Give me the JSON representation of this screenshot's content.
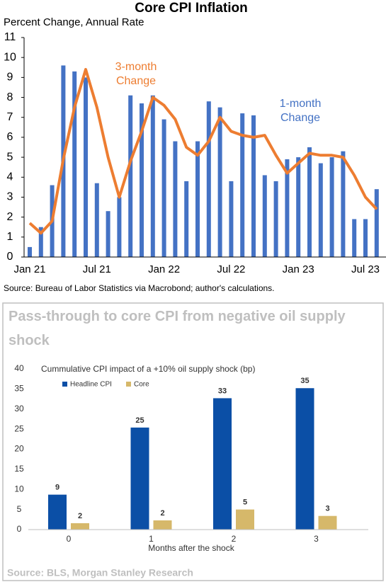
{
  "chart_data": [
    {
      "type": "bar",
      "title": "Core CPI Inflation",
      "subtitle": "Percent Change, Annual Rate",
      "source": "Source: Bureau of Labor Statistics via Macrobond; author's calculations.",
      "categories": [
        "Jan 21",
        null,
        null,
        null,
        null,
        null,
        "Jul 21",
        null,
        null,
        null,
        null,
        null,
        "Jan 22",
        null,
        null,
        null,
        null,
        null,
        "Jul 22",
        null,
        null,
        null,
        null,
        null,
        "Jan 23",
        null,
        null,
        null,
        null,
        null,
        "Jul 23",
        null
      ],
      "series": [
        {
          "name": "1-month Change",
          "type": "bar",
          "color": "#4472c4",
          "values": [
            0.5,
            1.5,
            3.6,
            9.6,
            9.3,
            9.0,
            3.7,
            2.3,
            3.0,
            8.1,
            7.7,
            8.1,
            6.9,
            5.8,
            3.8,
            5.8,
            7.8,
            7.5,
            3.8,
            7.2,
            7.1,
            4.1,
            3.8,
            4.9,
            5.0,
            5.5,
            4.7,
            5.0,
            5.3,
            1.9,
            1.9,
            3.4
          ]
        },
        {
          "name": "3-month Change",
          "type": "line",
          "color": "#ed7d31",
          "values": [
            1.7,
            1.2,
            1.8,
            4.9,
            7.5,
            9.4,
            7.5,
            5.0,
            3.0,
            4.8,
            6.3,
            8.0,
            7.6,
            6.9,
            5.5,
            5.1,
            5.8,
            7.0,
            6.3,
            6.1,
            6.0,
            6.1,
            5.1,
            4.2,
            4.7,
            5.2,
            5.1,
            5.1,
            5.0,
            4.1,
            3.0,
            2.4
          ]
        }
      ],
      "ylim": [
        0,
        11
      ],
      "yticks": [
        0,
        1,
        2,
        3,
        4,
        5,
        6,
        7,
        8,
        9,
        10,
        11
      ],
      "grid": false
    },
    {
      "type": "bar",
      "title": "Pass-through to core CPI from negative oil supply shock",
      "subtitle": "Cummulative CPI impact of a +10% oil supply shock (bp)",
      "source": "Source: BLS, Morgan Stanley Research",
      "x_label": "Months after the shock",
      "categories": [
        "0",
        "1",
        "2",
        "3"
      ],
      "series": [
        {
          "name": "Headline CPI",
          "type": "bar",
          "color": "#0b4fa6",
          "values": [
            8.7,
            25.4,
            32.7,
            35.2
          ],
          "value_labels": [
            "9",
            "25",
            "33",
            "35"
          ]
        },
        {
          "name": "Core",
          "type": "bar",
          "color": "#d6b86a",
          "values": [
            1.6,
            2.3,
            5.0,
            3.4
          ],
          "value_labels": [
            "2",
            "2",
            "5",
            "3"
          ]
        }
      ],
      "ylim": [
        0,
        40
      ],
      "yticks": [
        0,
        5,
        10,
        15,
        20,
        25,
        30,
        35,
        40
      ],
      "grid": false
    }
  ]
}
